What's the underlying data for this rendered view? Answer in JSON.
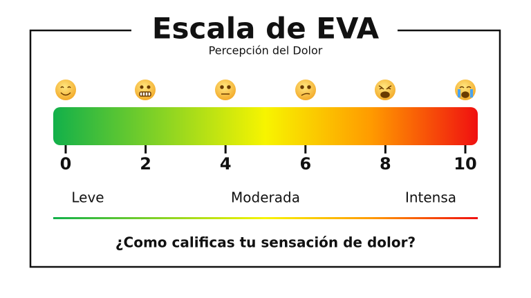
{
  "header": {
    "title": "Escala de EVA",
    "subtitle": "Percepción del Dolor"
  },
  "scale": {
    "ticks": [
      0,
      2,
      4,
      6,
      8,
      10
    ]
  },
  "levels": [
    "Leve",
    "Moderada",
    "Intensa"
  ],
  "question": "¿Como calificas tu sensación de dolor?"
}
